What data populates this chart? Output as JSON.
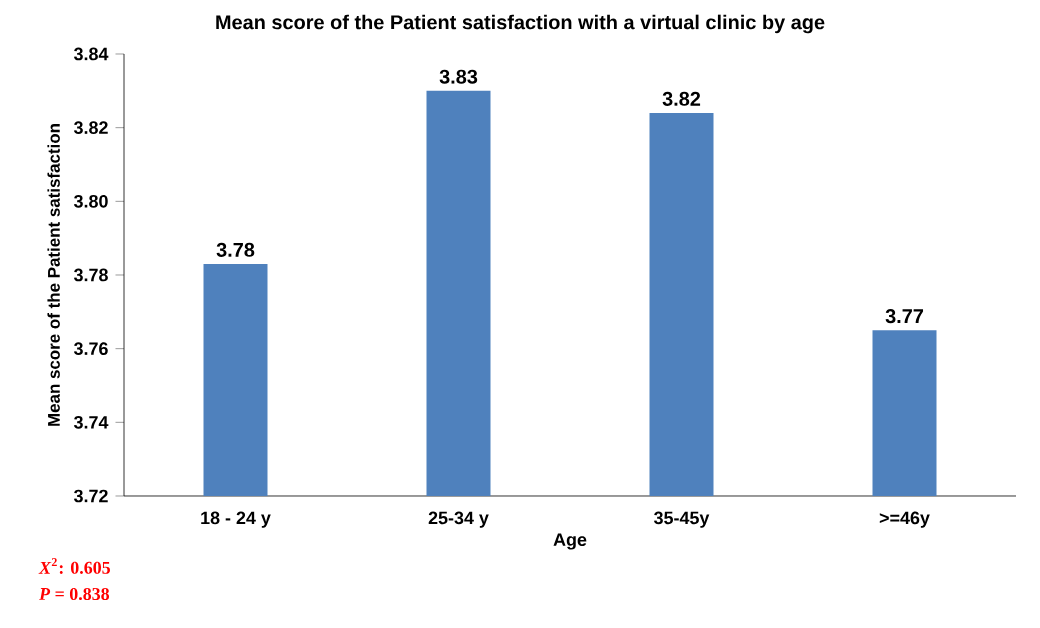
{
  "chart_data": {
    "type": "bar",
    "title": "Mean score of the Patient satisfaction with a virtual clinic by age",
    "xlabel": "Age",
    "ylabel": "Mean score of the Patient satisfaction",
    "categories": [
      "18 - 24 y",
      "25-34 y",
      "35-45y",
      ">=46y"
    ],
    "values": [
      3.783,
      3.83,
      3.824,
      3.765
    ],
    "value_labels": [
      "3.78",
      "3.83",
      "3.82",
      "3.77"
    ],
    "color": "#4f81bd",
    "ylim": [
      3.72,
      3.84
    ],
    "yticks": [
      3.72,
      3.74,
      3.76,
      3.78,
      {
        "value": 3.8,
        "label": "3.80"
      },
      3.82,
      3.84
    ],
    "grid": false,
    "annotations": [
      "*X*$^{2}$: 0.605",
      "*P* = 0.838"
    ]
  }
}
